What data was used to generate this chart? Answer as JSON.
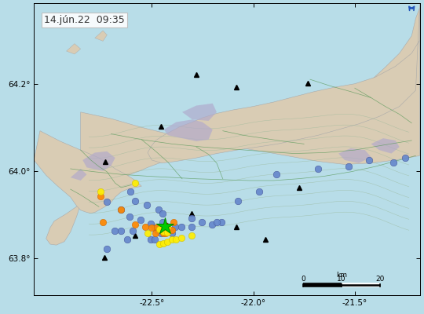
{
  "title": "14.jún.22  09:35",
  "xlim": [
    -23.08,
    -21.18
  ],
  "ylim": [
    63.715,
    64.385
  ],
  "xlabel_ticks": [
    -22.5,
    -22.0,
    -21.5
  ],
  "ylabel_ticks": [
    63.8,
    64.0,
    64.2
  ],
  "bg_color": "#b8dde8",
  "land_color": "#d9ccb4",
  "contour_color": "#9ab89a",
  "road_color": "#5a9a5a",
  "lava_color": "#b0a8cc",
  "green_star": [
    -22.435,
    63.874
  ],
  "blue_dots": [
    [
      -22.72,
      63.93
    ],
    [
      -22.65,
      63.912
    ],
    [
      -22.61,
      63.895
    ],
    [
      -22.555,
      63.888
    ],
    [
      -22.505,
      63.878
    ],
    [
      -22.485,
      63.87
    ],
    [
      -22.47,
      63.863
    ],
    [
      -22.455,
      63.857
    ],
    [
      -22.445,
      63.882
    ],
    [
      -22.43,
      63.873
    ],
    [
      -22.42,
      63.867
    ],
    [
      -22.41,
      63.862
    ],
    [
      -22.4,
      63.857
    ],
    [
      -22.385,
      63.872
    ],
    [
      -22.355,
      63.872
    ],
    [
      -22.305,
      63.872
    ],
    [
      -22.255,
      63.882
    ],
    [
      -22.205,
      63.877
    ],
    [
      -22.155,
      63.882
    ],
    [
      -22.605,
      63.952
    ],
    [
      -22.582,
      63.932
    ],
    [
      -22.525,
      63.922
    ],
    [
      -22.465,
      63.912
    ],
    [
      -22.445,
      63.902
    ],
    [
      -22.075,
      63.932
    ],
    [
      -21.885,
      63.992
    ],
    [
      -22.722,
      63.822
    ],
    [
      -22.682,
      63.862
    ],
    [
      -22.652,
      63.862
    ],
    [
      -22.622,
      63.842
    ],
    [
      -22.595,
      63.862
    ],
    [
      -22.505,
      63.842
    ],
    [
      -22.485,
      63.842
    ],
    [
      -22.305,
      63.892
    ],
    [
      -22.18,
      63.882
    ],
    [
      -21.97,
      63.952
    ],
    [
      -21.68,
      64.005
    ],
    [
      -21.53,
      64.01
    ],
    [
      -21.43,
      64.025
    ],
    [
      -21.31,
      64.02
    ],
    [
      -21.25,
      64.03
    ]
  ],
  "yellow_dots": [
    [
      -22.462,
      63.867
    ],
    [
      -22.442,
      63.86
    ],
    [
      -22.422,
      63.859
    ],
    [
      -22.462,
      63.832
    ],
    [
      -22.442,
      63.834
    ],
    [
      -22.422,
      63.837
    ],
    [
      -22.402,
      63.842
    ],
    [
      -22.382,
      63.842
    ],
    [
      -22.522,
      63.857
    ],
    [
      -22.352,
      63.847
    ],
    [
      -22.302,
      63.852
    ],
    [
      -22.422,
      63.872
    ],
    [
      -22.582,
      63.972
    ],
    [
      -22.752,
      63.952
    ]
  ],
  "orange_dots": [
    [
      -22.752,
      63.942
    ],
    [
      -22.742,
      63.882
    ],
    [
      -22.582,
      63.877
    ],
    [
      -22.532,
      63.872
    ],
    [
      -22.502,
      63.87
    ],
    [
      -22.472,
      63.872
    ],
    [
      -22.452,
      63.865
    ],
    [
      -22.442,
      63.865
    ],
    [
      -22.432,
      63.867
    ],
    [
      -22.422,
      63.862
    ],
    [
      -22.402,
      63.864
    ],
    [
      -22.482,
      63.857
    ],
    [
      -22.442,
      63.857
    ],
    [
      -22.432,
      63.857
    ],
    [
      -22.652,
      63.912
    ],
    [
      -22.392,
      63.882
    ]
  ],
  "red_dot": [
    -22.432,
    63.875
  ],
  "black_triangles": [
    [
      -22.73,
      64.022
    ],
    [
      -22.455,
      64.102
    ],
    [
      -22.28,
      64.222
    ],
    [
      -22.082,
      64.192
    ],
    [
      -21.732,
      64.202
    ],
    [
      -21.772,
      63.962
    ],
    [
      -22.082,
      63.872
    ],
    [
      -22.302,
      63.902
    ],
    [
      -22.582,
      63.852
    ],
    [
      -22.732,
      63.802
    ],
    [
      -21.942,
      63.842
    ]
  ],
  "compass_x": -21.22,
  "compass_y": 64.368,
  "scale_x0": -21.755,
  "scale_x10": -21.565,
  "scale_x20": -21.375,
  "scale_y": 63.738,
  "timestamp_fontsize": 9,
  "dot_size_blue": 38,
  "dot_size_yellow": 36,
  "dot_size_orange": 36,
  "dot_size_red": 28,
  "star_size": 16
}
